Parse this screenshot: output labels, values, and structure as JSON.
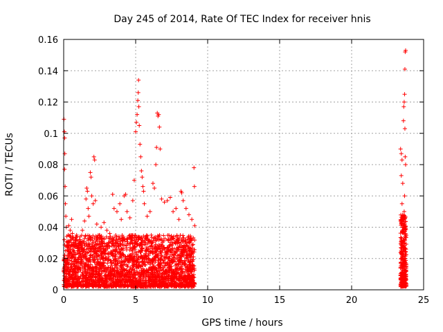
{
  "chart_data": {
    "type": "scatter",
    "title": "Day 245 of 2014, Rate Of TEC Index for receiver hnis",
    "xlabel": "GPS time / hours",
    "ylabel": "ROTI / TECUs",
    "xlim": [
      0,
      25
    ],
    "ylim": [
      0,
      0.16
    ],
    "xticks": [
      0,
      5,
      10,
      15,
      20,
      25
    ],
    "yticks": [
      0,
      0.02,
      0.04,
      0.06,
      0.08,
      0.1,
      0.12,
      0.14,
      0.16
    ],
    "xtick_labels": [
      "0",
      "5",
      "10",
      "15",
      "20",
      "25"
    ],
    "ytick_labels": [
      "0",
      "0.02",
      "0.04",
      "0.06",
      "0.08",
      "0.1",
      "0.12",
      "0.14",
      "0.16"
    ],
    "grid": true,
    "marker": "plus",
    "color": "#ff0000",
    "points": [
      [
        0.02,
        0.109
      ],
      [
        0.05,
        0.101
      ],
      [
        0.07,
        0.097
      ],
      [
        0.08,
        0.087
      ],
      [
        0.06,
        0.077
      ],
      [
        0.1,
        0.066
      ],
      [
        0.12,
        0.055
      ],
      [
        0.15,
        0.047
      ],
      [
        0.04,
        0.032
      ],
      [
        0.18,
        0.04
      ],
      [
        0.3,
        0.028
      ],
      [
        0.35,
        0.041
      ],
      [
        0.45,
        0.038
      ],
      [
        0.55,
        0.045
      ],
      [
        0.6,
        0.036
      ],
      [
        0.7,
        0.03
      ],
      [
        0.8,
        0.032
      ],
      [
        0.9,
        0.035
      ],
      [
        1.0,
        0.027
      ],
      [
        1.1,
        0.03
      ],
      [
        1.3,
        0.038
      ],
      [
        1.45,
        0.044
      ],
      [
        1.55,
        0.058
      ],
      [
        1.6,
        0.065
      ],
      [
        1.65,
        0.063
      ],
      [
        1.7,
        0.052
      ],
      [
        1.75,
        0.047
      ],
      [
        1.85,
        0.075
      ],
      [
        1.9,
        0.072
      ],
      [
        1.95,
        0.06
      ],
      [
        2.05,
        0.055
      ],
      [
        2.1,
        0.085
      ],
      [
        2.15,
        0.083
      ],
      [
        2.2,
        0.057
      ],
      [
        2.3,
        0.042
      ],
      [
        2.5,
        0.035
      ],
      [
        2.6,
        0.04
      ],
      [
        2.8,
        0.043
      ],
      [
        3.0,
        0.038
      ],
      [
        3.2,
        0.036
      ],
      [
        3.4,
        0.061
      ],
      [
        3.5,
        0.052
      ],
      [
        3.7,
        0.05
      ],
      [
        3.9,
        0.055
      ],
      [
        4.0,
        0.045
      ],
      [
        4.2,
        0.06
      ],
      [
        4.3,
        0.061
      ],
      [
        4.4,
        0.05
      ],
      [
        4.6,
        0.046
      ],
      [
        4.8,
        0.057
      ],
      [
        4.9,
        0.07
      ],
      [
        5.0,
        0.101
      ],
      [
        5.05,
        0.107
      ],
      [
        5.1,
        0.112
      ],
      [
        5.15,
        0.121
      ],
      [
        5.18,
        0.126
      ],
      [
        5.2,
        0.134
      ],
      [
        5.22,
        0.117
      ],
      [
        5.25,
        0.105
      ],
      [
        5.3,
        0.093
      ],
      [
        5.35,
        0.085
      ],
      [
        5.4,
        0.076
      ],
      [
        5.45,
        0.072
      ],
      [
        5.5,
        0.066
      ],
      [
        5.55,
        0.063
      ],
      [
        5.6,
        0.055
      ],
      [
        5.8,
        0.047
      ],
      [
        6.0,
        0.05
      ],
      [
        6.2,
        0.068
      ],
      [
        6.3,
        0.065
      ],
      [
        6.4,
        0.08
      ],
      [
        6.45,
        0.091
      ],
      [
        6.5,
        0.113
      ],
      [
        6.55,
        0.111
      ],
      [
        6.6,
        0.112
      ],
      [
        6.65,
        0.104
      ],
      [
        6.7,
        0.09
      ],
      [
        6.8,
        0.058
      ],
      [
        7.0,
        0.056
      ],
      [
        7.2,
        0.057
      ],
      [
        7.4,
        0.059
      ],
      [
        7.6,
        0.05
      ],
      [
        7.8,
        0.052
      ],
      [
        8.0,
        0.045
      ],
      [
        8.15,
        0.063
      ],
      [
        8.2,
        0.062
      ],
      [
        8.3,
        0.057
      ],
      [
        8.5,
        0.052
      ],
      [
        8.7,
        0.048
      ],
      [
        8.9,
        0.045
      ],
      [
        9.05,
        0.078
      ],
      [
        9.08,
        0.066
      ],
      [
        9.1,
        0.041
      ],
      [
        23.4,
        0.09
      ],
      [
        23.45,
        0.087
      ],
      [
        23.5,
        0.083
      ],
      [
        23.45,
        0.073
      ],
      [
        23.55,
        0.068
      ],
      [
        23.5,
        0.055
      ],
      [
        23.52,
        0.045
      ],
      [
        23.6,
        0.108
      ],
      [
        23.62,
        0.117
      ],
      [
        23.65,
        0.12
      ],
      [
        23.68,
        0.125
      ],
      [
        23.7,
        0.141
      ],
      [
        23.72,
        0.152
      ],
      [
        23.75,
        0.153
      ],
      [
        23.7,
        0.103
      ],
      [
        23.72,
        0.085
      ],
      [
        23.75,
        0.08
      ],
      [
        23.68,
        0.06
      ],
      [
        23.65,
        0.05
      ],
      [
        23.7,
        0.04
      ]
    ],
    "dense_bands": [
      {
        "x_from": 0.0,
        "x_to": 9.1,
        "y_min": 0.002,
        "y_max": 0.035
      },
      {
        "x_from": 23.4,
        "x_to": 23.8,
        "y_min": 0.002,
        "y_max": 0.048
      }
    ]
  }
}
